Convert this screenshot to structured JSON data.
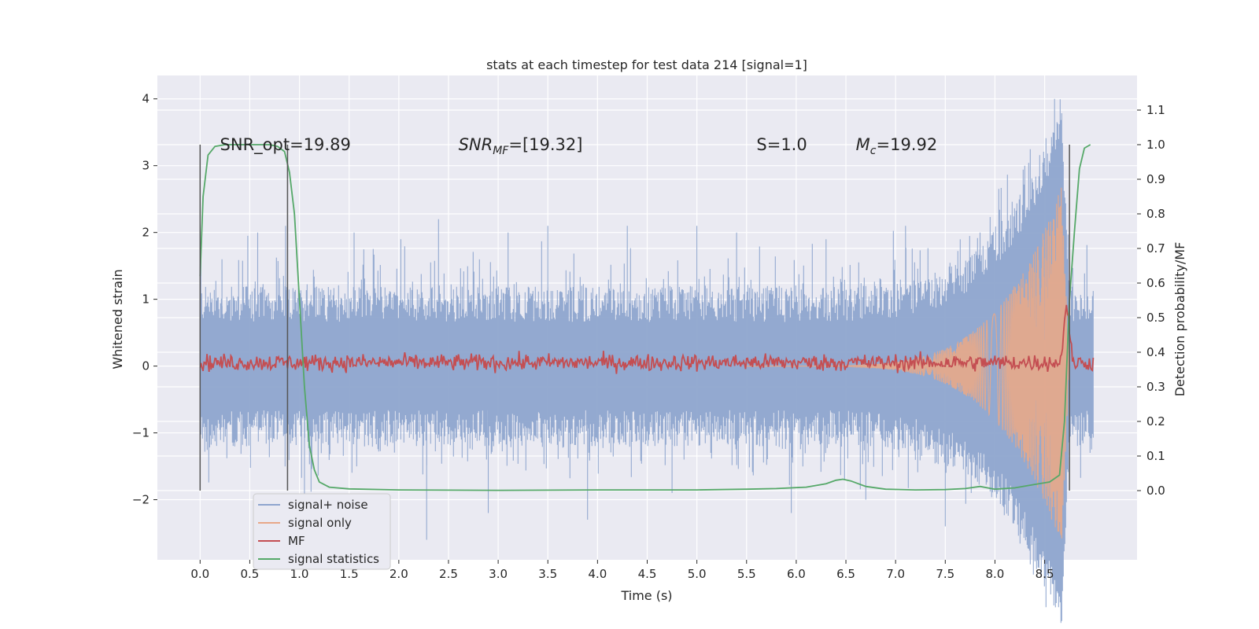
{
  "chart_data": {
    "type": "line",
    "title": "stats at each timestep for test data 214 [signal=1]",
    "xlabel": "Time (s)",
    "ylabel": "Whitened strain",
    "ylabel_right": "Detection probability/MF",
    "xlim": [
      -0.43,
      9.43
    ],
    "ylim": [
      -2.9,
      4.35
    ],
    "ylim_right": [
      -0.2,
      1.2
    ],
    "x_ticks": [
      "0.0",
      "0.5",
      "1.0",
      "1.5",
      "2.0",
      "2.5",
      "3.0",
      "3.5",
      "4.0",
      "4.5",
      "5.0",
      "5.5",
      "6.0",
      "6.5",
      "7.0",
      "7.5",
      "8.0",
      "8.5"
    ],
    "y_ticks_left": [
      "4",
      "3",
      "2",
      "1",
      "0",
      "−1",
      "−2"
    ],
    "y_ticks_right": [
      "1.1",
      "1.0",
      "0.9",
      "0.8",
      "0.7",
      "0.6",
      "0.5",
      "0.4",
      "0.3",
      "0.2",
      "0.1",
      "0.0"
    ],
    "annotations": [
      {
        "text": "SNR_opt=19.89",
        "x": 0.2,
        "y": 3.3
      },
      {
        "text": "SNR_MF=[19.32]",
        "x": 2.6,
        "y": 3.3
      },
      {
        "text": "S=1.0",
        "x": 5.6,
        "y": 3.3
      },
      {
        "text": "M_c=19.92",
        "x": 6.6,
        "y": 3.3
      }
    ],
    "vertical_markers": [
      0.0,
      0.88,
      8.75
    ],
    "series": [
      {
        "name": "signal+ noise",
        "color": "#8ea5ce",
        "axis": "left",
        "envelope": {
          "t_start": 0.0,
          "t_end": 8.99,
          "typical_max": 1.2,
          "typical_min": -1.2,
          "spike_times": [
            0.22,
            0.48,
            0.58,
            0.86,
            1.05,
            1.55,
            2.02,
            2.28,
            2.4,
            2.9,
            3.1,
            3.5,
            3.9,
            4.3,
            4.75,
            5.0,
            5.4,
            5.95,
            6.3,
            6.7,
            7.1,
            7.5,
            7.85,
            8.3,
            8.6,
            8.65
          ],
          "spike_values": [
            1.6,
            1.95,
            2.0,
            2.1,
            -2.2,
            2.0,
            1.9,
            -2.6,
            2.2,
            -2.2,
            2.0,
            2.1,
            -2.3,
            2.1,
            -1.9,
            2.1,
            2.0,
            -2.2,
            1.9,
            -2.0,
            2.1,
            -2.4,
            2.0,
            3.0,
            4.0,
            -2.5
          ]
        }
      },
      {
        "name": "signal only",
        "color": "#e8a888",
        "axis": "left",
        "chirp": {
          "t_start": 5.5,
          "t_merge": 8.67,
          "t_end": 8.75,
          "peak_amplitude": 2.7,
          "min_value": -2.5
        }
      },
      {
        "name": "MF",
        "color": "#c44e52",
        "axis": "right",
        "baseline": 0.37,
        "noise": 0.02,
        "peak_time": 8.72,
        "peak_value": 0.55
      },
      {
        "name": "signal statistics",
        "color": "#55a868",
        "axis": "right",
        "x": [
          0.0,
          0.03,
          0.08,
          0.15,
          0.25,
          0.4,
          0.55,
          0.7,
          0.78,
          0.85,
          0.9,
          0.95,
          1.0,
          1.05,
          1.1,
          1.15,
          1.2,
          1.3,
          1.5,
          2.0,
          3.0,
          4.0,
          5.0,
          5.5,
          5.8,
          6.1,
          6.3,
          6.4,
          6.47,
          6.55,
          6.7,
          6.9,
          7.2,
          7.5,
          7.7,
          7.85,
          8.0,
          8.2,
          8.4,
          8.55,
          8.65,
          8.7,
          8.75,
          8.8,
          8.85,
          8.9,
          8.96
        ],
        "values": [
          0.62,
          0.85,
          0.97,
          0.995,
          1.0,
          1.0,
          1.0,
          1.0,
          0.995,
          0.98,
          0.92,
          0.8,
          0.55,
          0.3,
          0.13,
          0.06,
          0.025,
          0.01,
          0.005,
          0.002,
          0.001,
          0.002,
          0.002,
          0.004,
          0.006,
          0.01,
          0.02,
          0.03,
          0.033,
          0.028,
          0.012,
          0.004,
          0.002,
          0.003,
          0.006,
          0.012,
          0.004,
          0.008,
          0.018,
          0.025,
          0.045,
          0.2,
          0.55,
          0.75,
          0.93,
          0.99,
          1.0
        ]
      }
    ],
    "legend": {
      "position": "lower-left",
      "entries": [
        "signal+ noise",
        "signal only",
        "MF",
        "signal statistics"
      ]
    }
  }
}
